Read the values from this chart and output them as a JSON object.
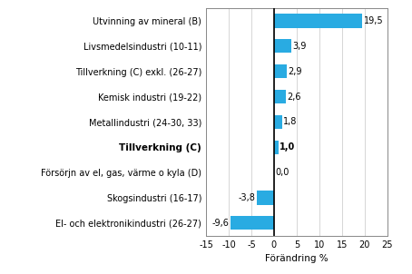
{
  "categories": [
    "El- och elektronikindustri (26-27)",
    "Skogsindustri (16-17)",
    "Försörjn av el, gas, värme o kyla (D)",
    "Tillverkning (C)",
    "Metallindustri (24-30, 33)",
    "Kemisk industri (19-22)",
    "Tillverkning (C) exkl. (26-27)",
    "Livsmedelsindustri (10-11)",
    "Utvinning av mineral (B)"
  ],
  "values": [
    -9.6,
    -3.8,
    0.0,
    1.0,
    1.8,
    2.6,
    2.9,
    3.9,
    19.5
  ],
  "bold_index": 3,
  "bar_color": "#29abe2",
  "xlabel": "Förändring %",
  "xlim": [
    -15,
    25
  ],
  "xticks": [
    -15,
    -10,
    -5,
    0,
    5,
    10,
    15,
    20,
    25
  ],
  "value_labels": [
    "-9,6",
    "-3,8",
    "0,0",
    "1,0",
    "1,8",
    "2,6",
    "2,9",
    "3,9",
    "19,5"
  ],
  "grid_color": "#d0d0d0",
  "bg_color": "#ffffff",
  "bar_height": 0.55,
  "label_fontsize": 7.0,
  "value_fontsize": 7.0,
  "xlabel_fontsize": 7.5
}
